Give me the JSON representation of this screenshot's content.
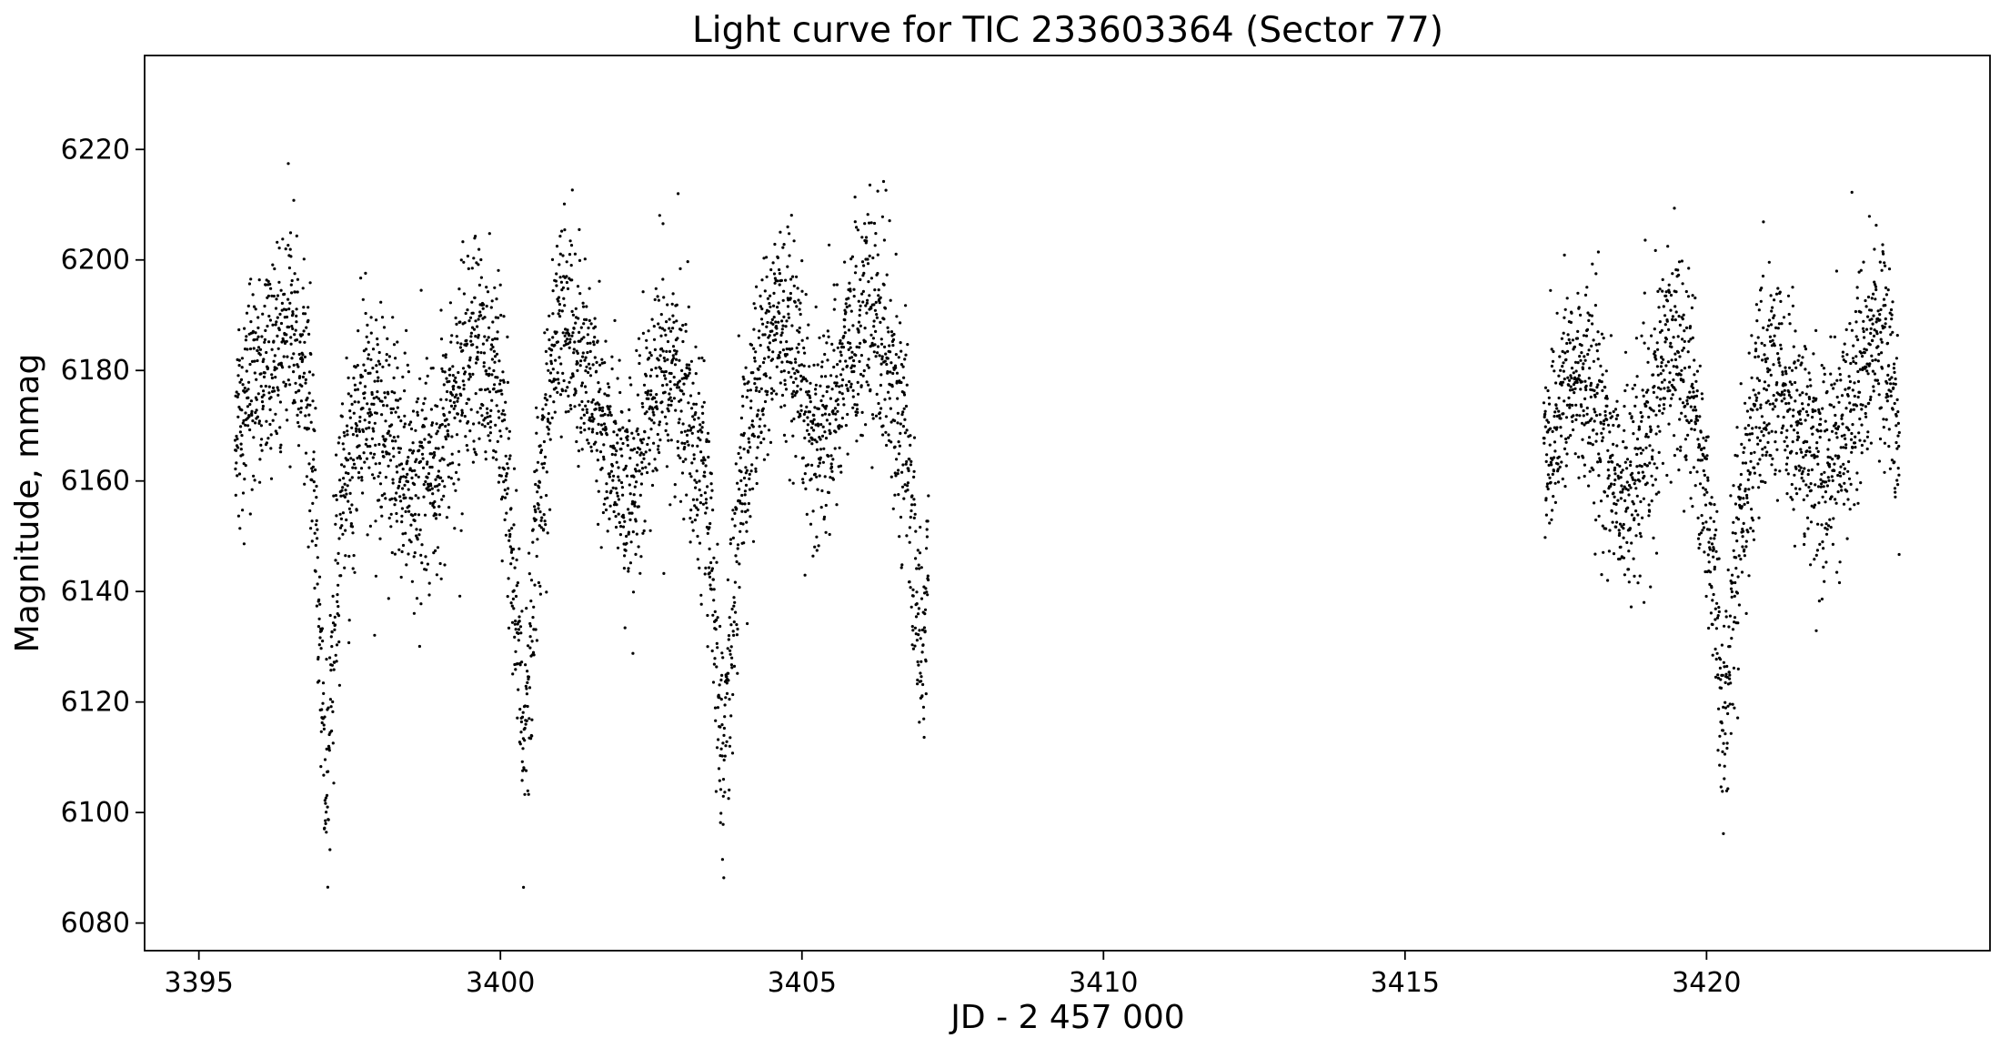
{
  "chart_data": {
    "type": "scatter",
    "title": "Light curve for TIC 233603364 (Sector 77)",
    "xlabel": "JD - 2 457 000",
    "ylabel": "Magnitude, mmag",
    "xlim": [
      3394.1,
      3424.7
    ],
    "ylim": [
      6075,
      6237
    ],
    "xticks": [
      3395,
      3400,
      3405,
      3410,
      3415,
      3420
    ],
    "xtick_labels": [
      "3395",
      "3400",
      "3405",
      "3410",
      "3415",
      "3420"
    ],
    "yticks": [
      6080,
      6100,
      6120,
      6140,
      6160,
      6180,
      6200,
      6220
    ],
    "ytick_labels": [
      "6080",
      "6100",
      "6120",
      "6140",
      "6160",
      "6180",
      "6200",
      "6220"
    ],
    "grid": false,
    "marker_color": "#000000",
    "series": [
      {
        "segments": [
          {
            "x_start": 3395.6,
            "x_end": 3407.15
          },
          {
            "x_start": 3417.25,
            "x_end": 3423.4
          }
        ],
        "points_approx": [
          [
            3395.6,
            6168
          ],
          [
            3395.8,
            6175
          ],
          [
            3396.0,
            6180
          ],
          [
            3396.3,
            6186
          ],
          [
            3396.5,
            6188
          ],
          [
            3396.7,
            6180
          ],
          [
            3396.9,
            6165
          ],
          [
            3397.1,
            6100
          ],
          [
            3397.2,
            6125
          ],
          [
            3397.4,
            6160
          ],
          [
            3397.7,
            6172
          ],
          [
            3398.0,
            6170
          ],
          [
            3398.3,
            6165
          ],
          [
            3398.6,
            6158
          ],
          [
            3398.9,
            6162
          ],
          [
            3399.2,
            6172
          ],
          [
            3399.5,
            6182
          ],
          [
            3399.8,
            6183
          ],
          [
            3400.0,
            6175
          ],
          [
            3400.2,
            6150
          ],
          [
            3400.4,
            6110
          ],
          [
            3400.6,
            6150
          ],
          [
            3400.8,
            6178
          ],
          [
            3401.0,
            6190
          ],
          [
            3401.2,
            6186
          ],
          [
            3401.5,
            6178
          ],
          [
            3401.8,
            6165
          ],
          [
            3402.0,
            6160
          ],
          [
            3402.2,
            6155
          ],
          [
            3402.5,
            6175
          ],
          [
            3402.8,
            6182
          ],
          [
            3403.1,
            6175
          ],
          [
            3403.4,
            6160
          ],
          [
            3403.7,
            6110
          ],
          [
            3404.0,
            6160
          ],
          [
            3404.3,
            6178
          ],
          [
            3404.6,
            6190
          ],
          [
            3404.9,
            6178
          ],
          [
            3405.2,
            6168
          ],
          [
            3405.5,
            6172
          ],
          [
            3405.8,
            6185
          ],
          [
            3406.1,
            6190
          ],
          [
            3406.4,
            6185
          ],
          [
            3406.7,
            6168
          ],
          [
            3407.0,
            6125
          ],
          [
            3407.1,
            6150
          ],
          [
            3417.3,
            6165
          ],
          [
            3417.6,
            6175
          ],
          [
            3417.9,
            6180
          ],
          [
            3418.2,
            6172
          ],
          [
            3418.5,
            6160
          ],
          [
            3418.8,
            6158
          ],
          [
            3419.1,
            6170
          ],
          [
            3419.4,
            6185
          ],
          [
            3419.7,
            6182
          ],
          [
            3419.9,
            6165
          ],
          [
            3420.1,
            6145
          ],
          [
            3420.3,
            6115
          ],
          [
            3420.5,
            6150
          ],
          [
            3420.8,
            6170
          ],
          [
            3421.1,
            6178
          ],
          [
            3421.4,
            6172
          ],
          [
            3421.7,
            6165
          ],
          [
            3422.0,
            6162
          ],
          [
            3422.3,
            6170
          ],
          [
            3422.6,
            6182
          ],
          [
            3422.9,
            6188
          ],
          [
            3423.2,
            6168
          ]
        ]
      }
    ]
  }
}
